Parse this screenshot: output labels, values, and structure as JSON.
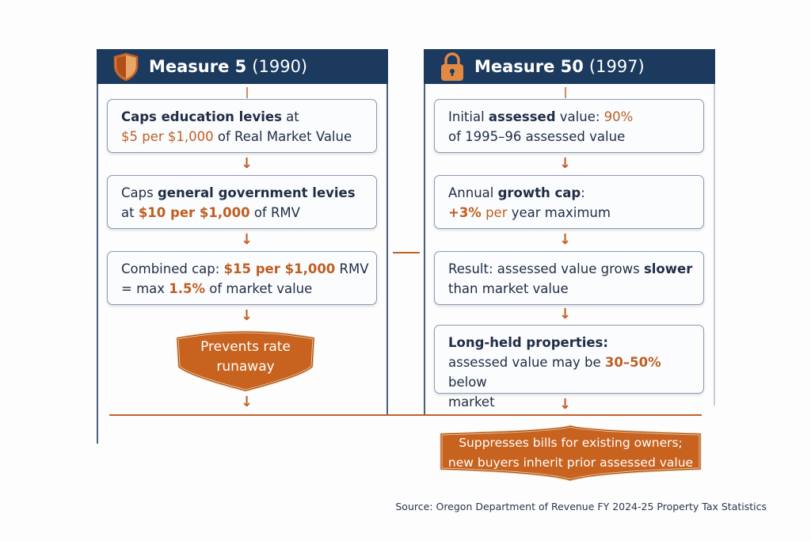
{
  "measure5": {
    "title": "Measure 5",
    "year": "(1990)",
    "icon": "shield-icon",
    "steps": [
      {
        "l1": [
          {
            "t": "Caps education levies"
          },
          {
            "t": " at"
          }
        ],
        "l2": [
          {
            "t": "$5 per $1,000"
          },
          {
            "t": " of Real Market Value"
          }
        ]
      },
      {
        "l1": [
          {
            "t": "Caps "
          },
          {
            "t": "general government levies"
          }
        ],
        "l2": [
          {
            "t": "at "
          },
          {
            "t": "$10 per $1,000"
          },
          {
            "t": " of RMV"
          }
        ]
      },
      {
        "l1": [
          {
            "t": "Combined cap: "
          },
          {
            "t": "$15 per $1,000"
          },
          {
            "t": " RMV"
          }
        ],
        "l2": [
          {
            "t": "= max "
          },
          {
            "t": "1.5%"
          },
          {
            "t": " of market value"
          }
        ]
      }
    ],
    "result": [
      "Prevents rate",
      "runaway"
    ]
  },
  "measure50": {
    "title": "Measure 50",
    "year": "(1997)",
    "icon": "lock-icon",
    "steps": [
      {
        "l1": [
          {
            "t": "Initial "
          },
          {
            "t": "assessed"
          },
          {
            "t": " value: "
          },
          {
            "t": "90%"
          }
        ],
        "l2": [
          {
            "t": "of 1995–96 assessed  value"
          }
        ]
      },
      {
        "l1": [
          {
            "t": "Annual "
          },
          {
            "t": "growth cap"
          },
          {
            "t": ":"
          }
        ],
        "l2": [
          {
            "t": "+3%"
          },
          {
            "t": " per"
          },
          {
            "t": " year maximum"
          }
        ]
      },
      {
        "l1": [
          {
            "t": "Result: assessed value grows "
          },
          {
            "t": "slower"
          }
        ],
        "l2": [
          {
            "t": "than market value"
          }
        ]
      },
      {
        "l1": [
          {
            "t": "Long-held properties:"
          }
        ],
        "l2": [
          {
            "t": "assessed value may be "
          },
          {
            "t": "30–50%"
          },
          {
            "t": " below"
          }
        ],
        "l3": [
          {
            "t": "market"
          }
        ]
      }
    ],
    "result": [
      "Suppresses bills for existing owners;",
      "new buyers inherit prior assessed value"
    ]
  },
  "source": "Source: Oregon Department of Revenue FY 2024-25 Property Tax Statistics",
  "colors": {
    "navy": "#1b3a5e",
    "orange": "#c0612a",
    "text": "#1f2d45"
  }
}
